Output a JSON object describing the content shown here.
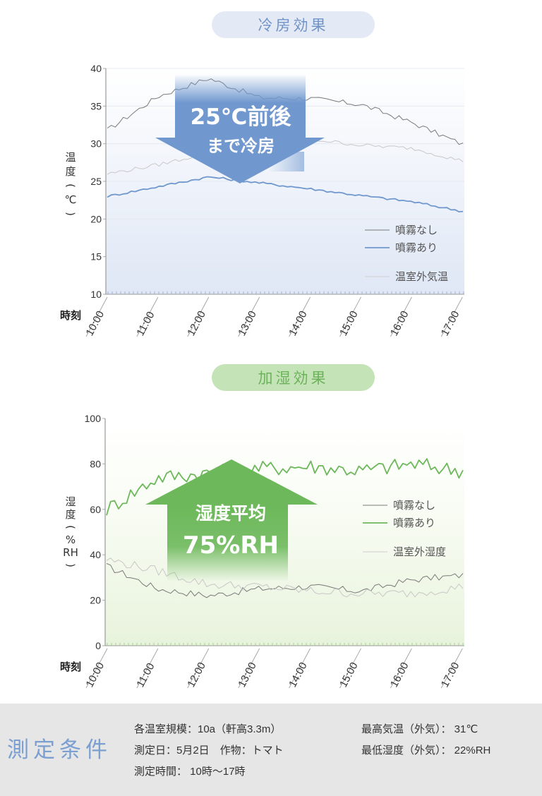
{
  "cooling_section": {
    "title": "冷房効果",
    "callout_line1": "25℃前後",
    "callout_line2": "まで冷房",
    "ylabel": [
      "温",
      "度",
      "(",
      "℃",
      ")"
    ],
    "xlabel": "時刻",
    "legend": [
      "噴霧なし",
      "噴霧あり",
      "温室外気温"
    ]
  },
  "humidity_section": {
    "title": "加湿効果",
    "callout_line1": "湿度平均",
    "callout_line2": "75%RH",
    "ylabel": [
      "湿",
      "度",
      "(",
      "%",
      "RH",
      ")"
    ],
    "xlabel": "時刻",
    "legend": [
      "噴霧なし",
      "噴霧あり",
      "温室外湿度"
    ]
  },
  "colors": {
    "cool_accent": "#7098cf",
    "humid_accent": "#6cb85a",
    "no_mist_line": "#7a7a7a",
    "outside_line": "#c8c8c8"
  },
  "conditions": {
    "heading": "測定条件",
    "items": [
      "各温室規模：10a（軒高3.3m）",
      "測定日：5月2日　作物：トマト",
      "測定時間： 10時～17時"
    ],
    "right_items": [
      "最高気温（外気）： 31℃",
      "最低湿度（外気）： 22%RH"
    ]
  },
  "chart_data": [
    {
      "type": "line",
      "title": "冷房効果",
      "xlabel": "時刻",
      "ylabel": "温度(℃)",
      "ylim": [
        10,
        40
      ],
      "yticks": [
        10,
        15,
        20,
        25,
        30,
        35,
        40
      ],
      "x": [
        "10:00",
        "11:00",
        "12:00",
        "13:00",
        "14:00",
        "15:00",
        "16:00",
        "17:00"
      ],
      "grid": true,
      "legend_position": "right-inside",
      "annotations": [
        "25℃前後まで冷房"
      ],
      "series": [
        {
          "name": "噴霧なし",
          "values": [
            31.8,
            36.3,
            38.7,
            36.1,
            36.0,
            35.2,
            32.8,
            29.9
          ]
        },
        {
          "name": "噴霧あり",
          "values": [
            23.0,
            24.3,
            25.6,
            24.8,
            24.0,
            23.1,
            22.3,
            21.0
          ]
        },
        {
          "name": "温室外気温",
          "values": [
            26.0,
            27.2,
            28.8,
            30.2,
            30.6,
            29.8,
            29.4,
            27.7
          ]
        }
      ]
    },
    {
      "type": "line",
      "title": "加湿効果",
      "xlabel": "時刻",
      "ylabel": "湿度(%RH)",
      "ylim": [
        0,
        100
      ],
      "yticks": [
        0,
        20,
        40,
        60,
        80,
        100
      ],
      "x": [
        "10:00",
        "11:00",
        "12:00",
        "13:00",
        "14:00",
        "15:00",
        "16:00",
        "17:00"
      ],
      "grid": false,
      "legend_position": "right-inside",
      "annotations": [
        "湿度平均75%RH"
      ],
      "series": [
        {
          "name": "噴霧なし",
          "values": [
            35,
            25,
            22,
            25,
            26,
            24,
            29,
            31
          ]
        },
        {
          "name": "噴霧あり",
          "values": [
            60,
            74,
            76,
            78,
            79,
            77,
            80,
            77
          ]
        },
        {
          "name": "温室外湿度",
          "values": [
            38,
            33,
            27,
            26,
            24,
            23,
            23,
            26
          ]
        }
      ]
    }
  ]
}
